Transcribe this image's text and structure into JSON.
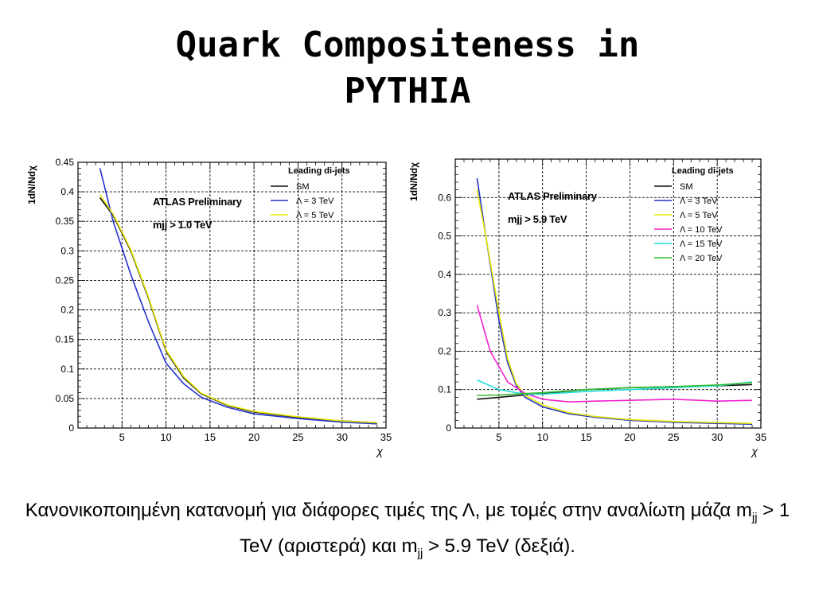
{
  "slide": {
    "title_line1": "Quark Compositeness in",
    "title_line2": "PYTHIA"
  },
  "caption": {
    "part1": "Κανονικοποιημένη κατανομή για διάφορες τιμές της Λ, με τομές στην αναλίωτη μάζα m",
    "sub1": "jj",
    "part2": " > 1 TeV (αριστερά) και m",
    "sub2": "jj",
    "part3": " > 5.9 TeV (δεξιά)."
  },
  "chart_data": [
    {
      "type": "line",
      "ylabel": "1dN/Ndχ",
      "xlabel": "χ",
      "xlim": [
        0,
        35
      ],
      "ylim": [
        0,
        0.45
      ],
      "xticks": [
        5,
        10,
        15,
        20,
        25,
        30,
        35
      ],
      "yticks": [
        0,
        0.05,
        0.1,
        0.15,
        0.2,
        0.25,
        0.3,
        0.35,
        0.4,
        0.45
      ],
      "annotation": [
        "ATLAS Preliminary",
        "mjj > 1.0 TeV"
      ],
      "legend_title": "Leading di-jets",
      "legend_position": "top-right",
      "series": [
        {
          "name": "SM",
          "color": "#111111",
          "x": [
            2.5,
            4,
            6,
            8,
            10,
            12,
            14,
            17,
            20,
            25,
            30,
            34
          ],
          "y": [
            0.39,
            0.36,
            0.3,
            0.22,
            0.13,
            0.085,
            0.058,
            0.038,
            0.027,
            0.018,
            0.012,
            0.009
          ]
        },
        {
          "name": "Λ = 3 TeV",
          "color": "#2233cc",
          "x": [
            2.5,
            4,
            6,
            8,
            10,
            12,
            14,
            17,
            20,
            25,
            30,
            34
          ],
          "y": [
            0.44,
            0.35,
            0.26,
            0.18,
            0.11,
            0.075,
            0.052,
            0.035,
            0.024,
            0.016,
            0.01,
            0.007
          ]
        },
        {
          "name": "Λ = 5 TeV",
          "color": "#e8e800",
          "x": [
            2.5,
            4,
            6,
            8,
            10,
            12,
            14,
            17,
            20,
            25,
            30,
            34
          ],
          "y": [
            0.395,
            0.362,
            0.302,
            0.222,
            0.132,
            0.087,
            0.059,
            0.039,
            0.028,
            0.019,
            0.012,
            0.009
          ]
        }
      ]
    },
    {
      "type": "line",
      "ylabel": "1dN/Ndχ",
      "xlabel": "χ",
      "xlim": [
        0,
        35
      ],
      "ylim": [
        0,
        0.7
      ],
      "xticks": [
        5,
        10,
        15,
        20,
        25,
        30,
        35
      ],
      "yticks": [
        0,
        0.1,
        0.2,
        0.3,
        0.4,
        0.5,
        0.6
      ],
      "annotation": [
        "ATLAS Preliminary",
        "mjj > 5.9 TeV"
      ],
      "legend_title": "Leading di-jets",
      "legend_position": "top-right",
      "series": [
        {
          "name": "SM",
          "color": "#111111",
          "x": [
            2.5,
            5,
            10,
            15,
            20,
            25,
            30,
            34
          ],
          "y": [
            0.075,
            0.08,
            0.09,
            0.1,
            0.105,
            0.108,
            0.11,
            0.113
          ]
        },
        {
          "name": "Λ = 3 TeV",
          "color": "#2233cc",
          "x": [
            2.5,
            3.5,
            5,
            6,
            7,
            8,
            10,
            13,
            16,
            20,
            25,
            30,
            34
          ],
          "y": [
            0.65,
            0.5,
            0.28,
            0.17,
            0.11,
            0.08,
            0.055,
            0.037,
            0.028,
            0.02,
            0.015,
            0.012,
            0.01
          ]
        },
        {
          "name": "Λ = 5 TeV",
          "color": "#e8e800",
          "x": [
            2.5,
            3.5,
            5,
            6,
            7,
            8,
            10,
            13,
            16,
            20,
            25,
            30,
            34
          ],
          "y": [
            0.62,
            0.5,
            0.3,
            0.18,
            0.115,
            0.085,
            0.06,
            0.04,
            0.03,
            0.022,
            0.017,
            0.014,
            0.012
          ]
        },
        {
          "name": "Λ = 10 TeV",
          "color": "#ee22cc",
          "x": [
            2.5,
            4,
            6,
            8,
            10,
            13,
            16,
            20,
            25,
            30,
            34
          ],
          "y": [
            0.32,
            0.2,
            0.12,
            0.09,
            0.075,
            0.068,
            0.07,
            0.072,
            0.075,
            0.07,
            0.072
          ]
        },
        {
          "name": "Λ = 15 TeV",
          "color": "#22dddd",
          "x": [
            2.5,
            5,
            8,
            10,
            15,
            20,
            25,
            30,
            34
          ],
          "y": [
            0.125,
            0.1,
            0.088,
            0.088,
            0.095,
            0.1,
            0.105,
            0.11,
            0.12
          ]
        },
        {
          "name": "Λ = 20 TeV",
          "color": "#33bb33",
          "x": [
            2.5,
            5,
            10,
            15,
            20,
            25,
            30,
            34
          ],
          "y": [
            0.085,
            0.086,
            0.092,
            0.1,
            0.105,
            0.108,
            0.112,
            0.118
          ]
        }
      ]
    }
  ]
}
